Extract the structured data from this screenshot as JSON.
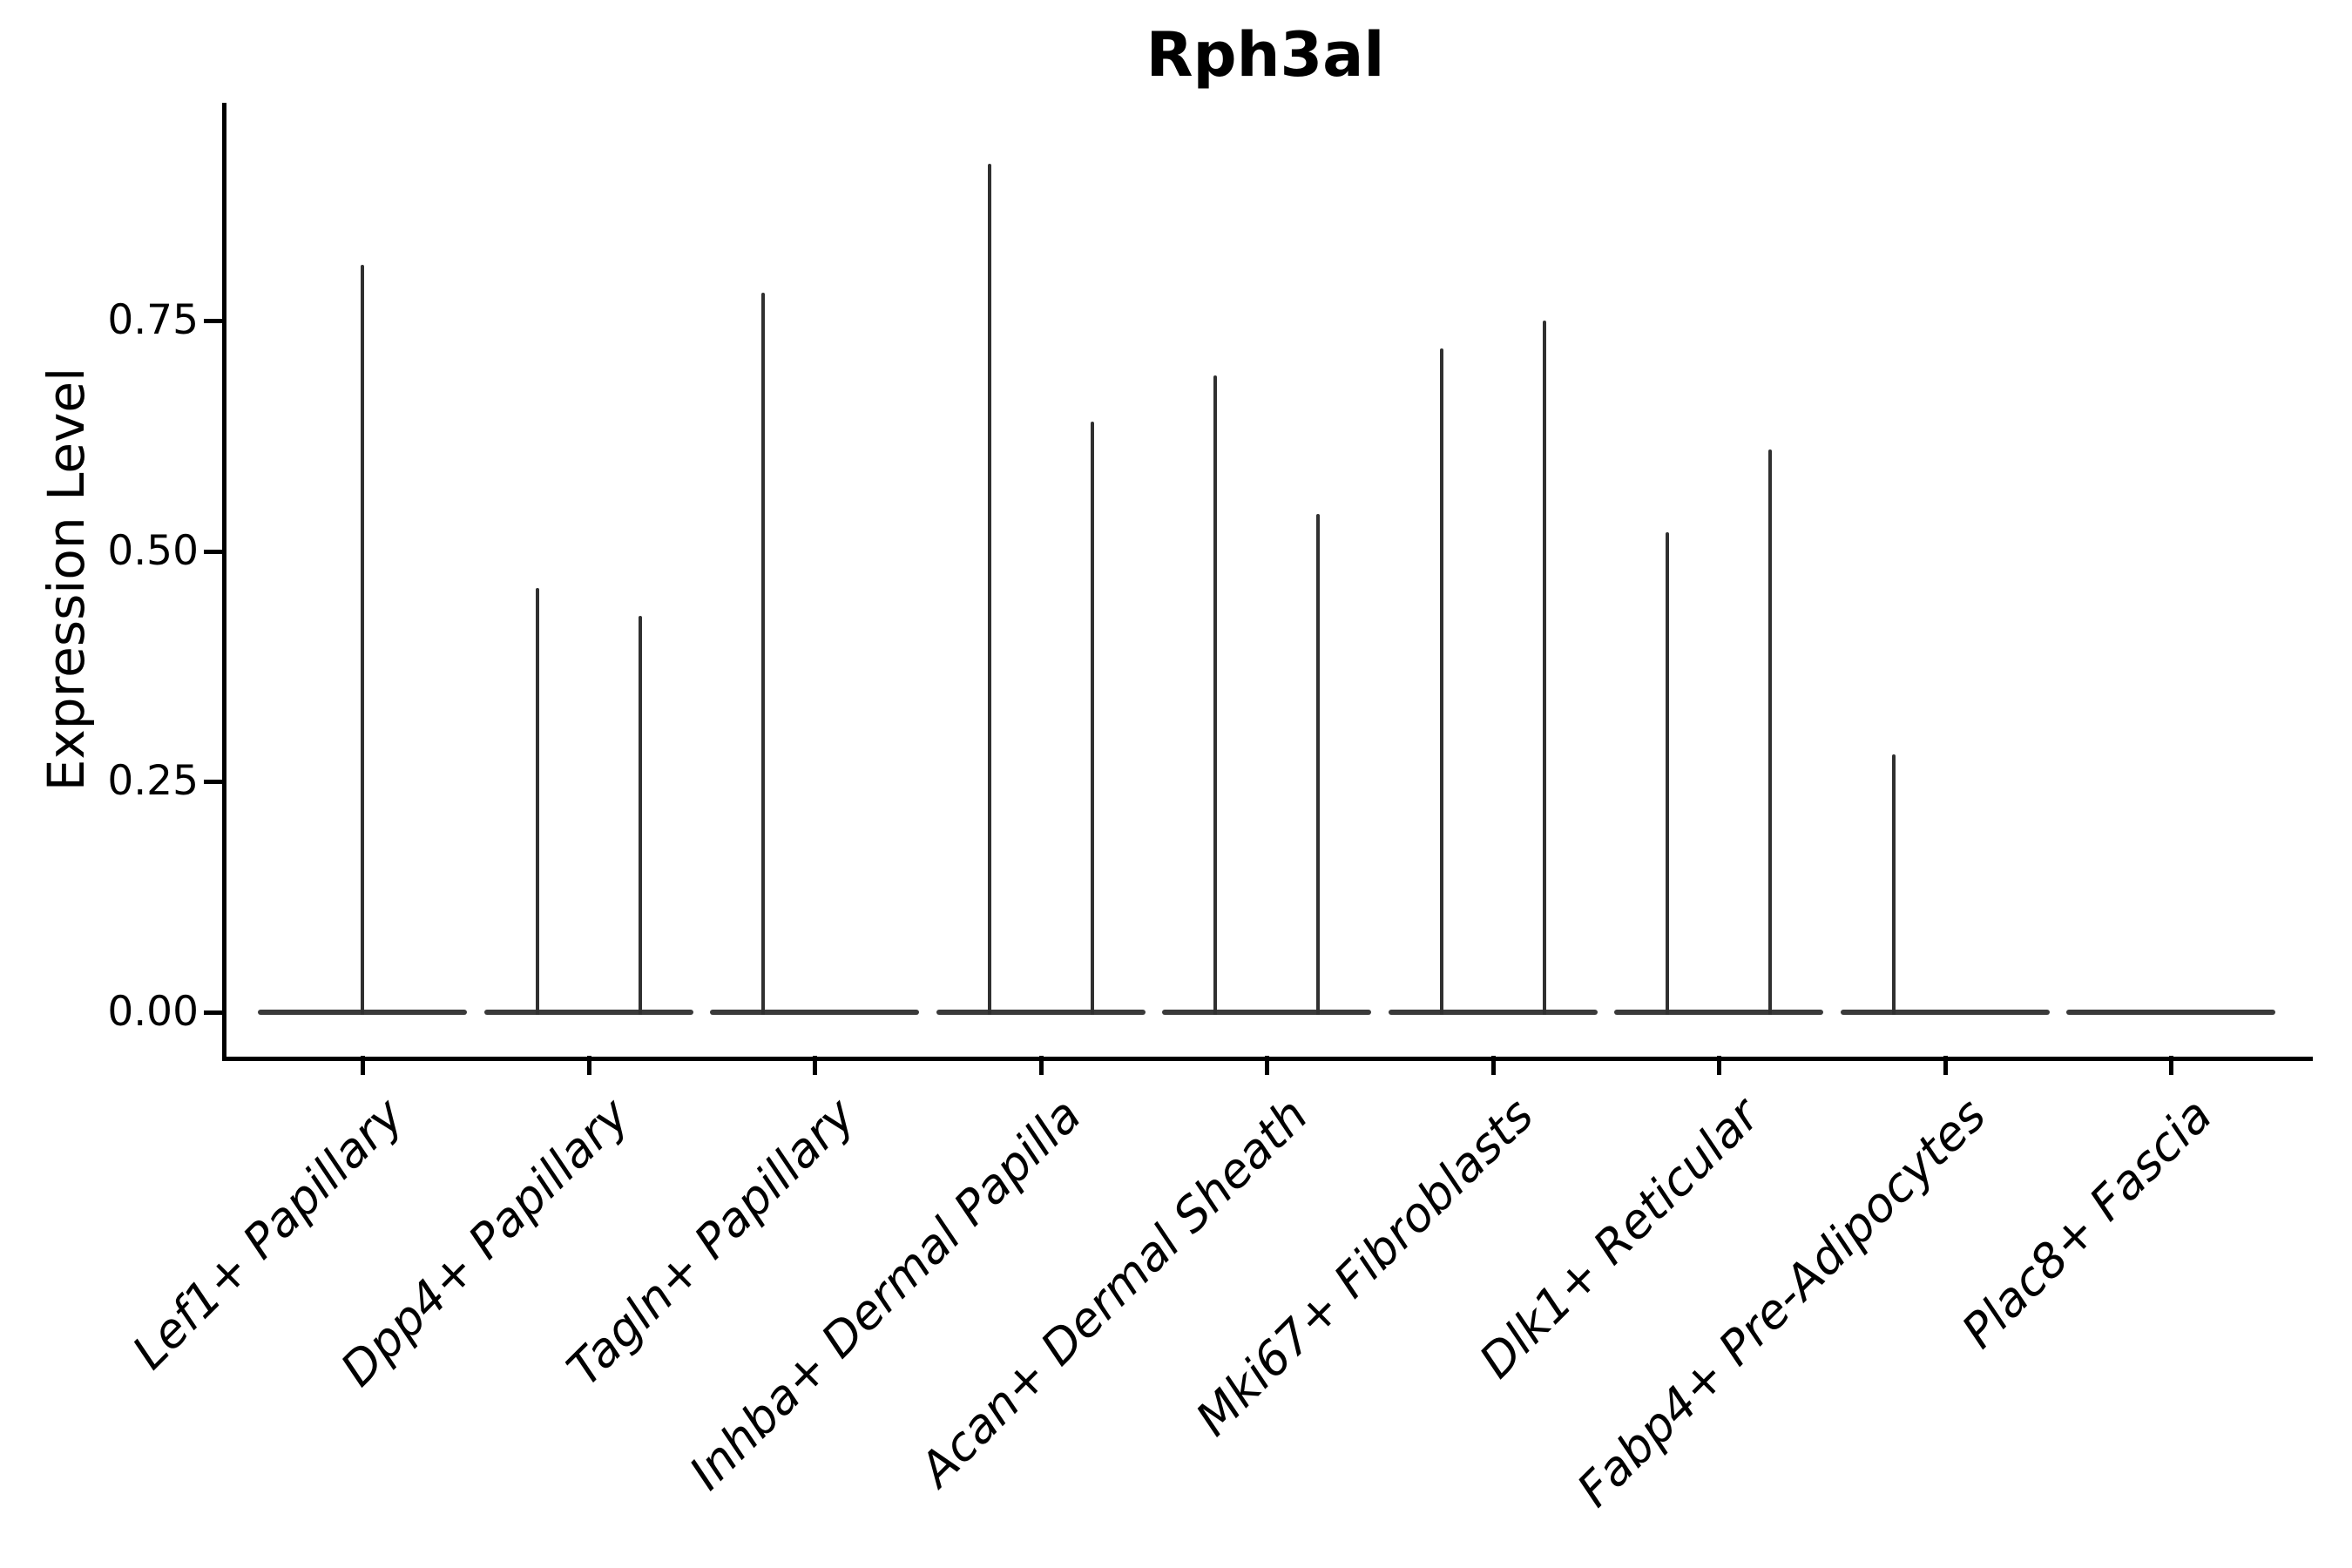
{
  "figure": {
    "background": "#ffffff"
  },
  "chart_data": {
    "type": "violin",
    "title": "Rph3al",
    "xlabel": "",
    "ylabel": "Expression Level",
    "ylim": [
      -0.05,
      0.98
    ],
    "grid": false,
    "legend": "none",
    "axis_color": "#000000",
    "spike_color": "#303030",
    "base_bar_color": "#3a3a3a",
    "ytick_labels": [
      "0.00",
      "0.25",
      "0.50",
      "0.75"
    ],
    "ytick_values": [
      0,
      0.25,
      0.5,
      0.75
    ],
    "categories": [
      "Lef1+ Papillary",
      "Dpp4+ Papillary",
      "Tagln+ Papillary",
      "Inhba+ Dermal Papilla",
      "Acan+ Dermal Sheath",
      "Mki67+ Fibroblasts",
      "Dlk1+ Reticular",
      "Fabp4+ Pre-Adipocytes",
      "Plac8+ Fascia"
    ],
    "violins": [
      {
        "category": "Lef1+ Papillary",
        "spikes": [
          {
            "pos": "center",
            "max": 0.81
          }
        ]
      },
      {
        "category": "Dpp4+ Papillary",
        "spikes": [
          {
            "pos": "left",
            "max": 0.46
          },
          {
            "pos": "right",
            "max": 0.43
          }
        ]
      },
      {
        "category": "Tagln+ Papillary",
        "spikes": [
          {
            "pos": "left",
            "max": 0.78
          }
        ]
      },
      {
        "category": "Inhba+ Dermal Papilla",
        "spikes": [
          {
            "pos": "left",
            "max": 0.92
          },
          {
            "pos": "right",
            "max": 0.64
          }
        ]
      },
      {
        "category": "Acan+ Dermal Sheath",
        "spikes": [
          {
            "pos": "left",
            "max": 0.69
          },
          {
            "pos": "right",
            "max": 0.54
          }
        ]
      },
      {
        "category": "Mki67+ Fibroblasts",
        "spikes": [
          {
            "pos": "left",
            "max": 0.72
          },
          {
            "pos": "right",
            "max": 0.75
          }
        ]
      },
      {
        "category": "Dlk1+ Reticular",
        "spikes": [
          {
            "pos": "left",
            "max": 0.52
          },
          {
            "pos": "right",
            "max": 0.61
          }
        ]
      },
      {
        "category": "Fabp4+ Pre-Adipocytes",
        "spikes": [
          {
            "pos": "left",
            "max": 0.28
          }
        ]
      },
      {
        "category": "Plac8+ Fascia",
        "spikes": []
      }
    ]
  }
}
